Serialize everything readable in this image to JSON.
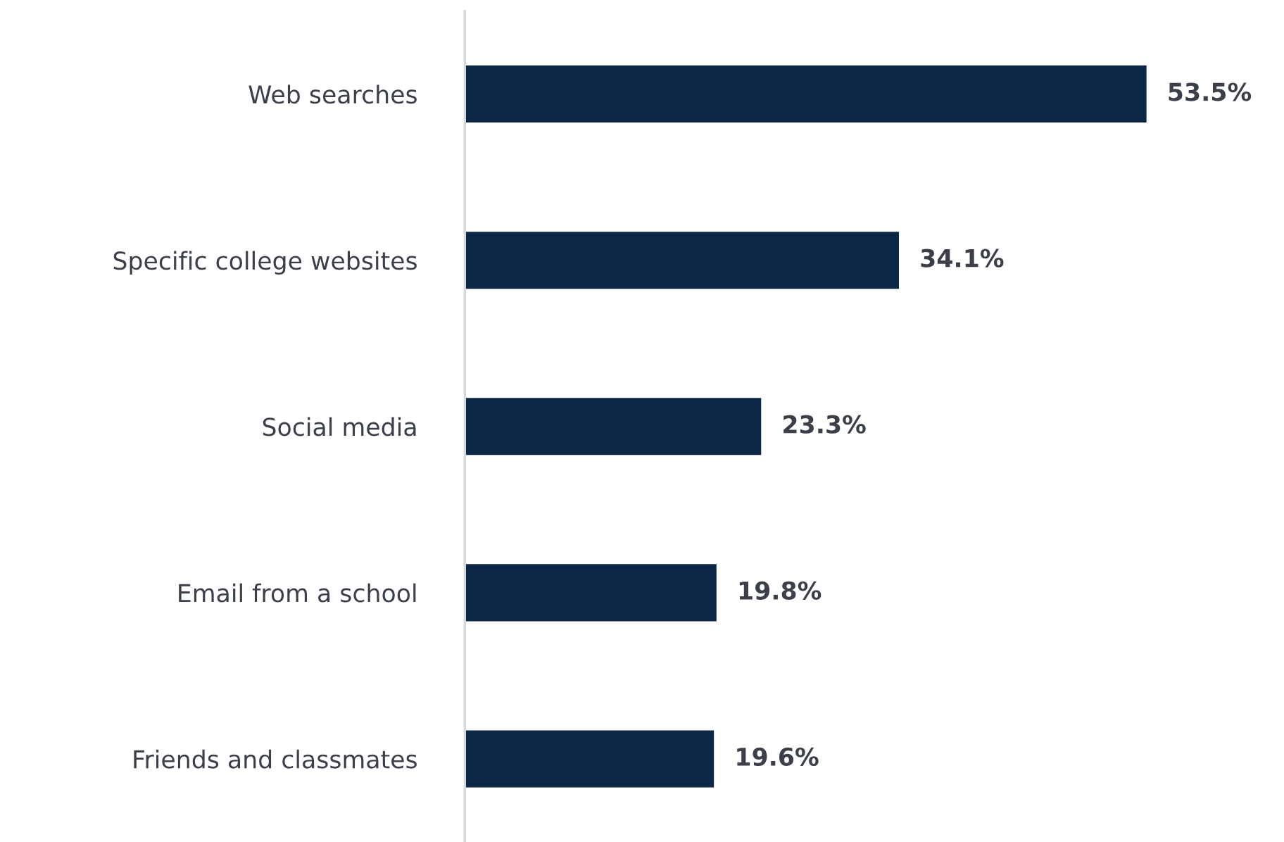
{
  "chart_data": {
    "type": "bar",
    "orientation": "horizontal",
    "categories": [
      "Web searches",
      "Specific college websites",
      "Social media",
      "Email from a school",
      "Friends and classmates"
    ],
    "values": [
      53.5,
      34.1,
      23.3,
      19.8,
      19.6
    ],
    "value_labels": [
      "53.5%",
      "34.1%",
      "23.3%",
      "19.8%",
      "19.6%"
    ],
    "color": "#0b2745",
    "grid": false,
    "legend": false
  }
}
